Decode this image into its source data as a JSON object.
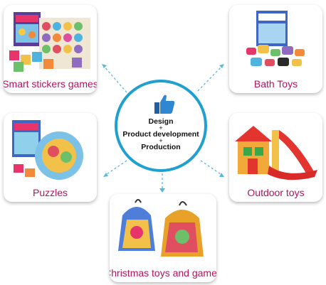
{
  "center": {
    "icon": "thumbs-up-icon",
    "lines": [
      "Design",
      "+",
      "Product development",
      "+",
      "Production"
    ]
  },
  "cards": {
    "smart_stickers": {
      "label": "Smart stickers games"
    },
    "bath_toys": {
      "label": "Bath Toys"
    },
    "puzzles": {
      "label": "Puzzles"
    },
    "outdoor_toys": {
      "label": "Outdoor toys"
    },
    "christmas": {
      "label": "Christmas toys and games"
    }
  },
  "colors": {
    "label": "#b5135e",
    "ring": "#1fa0cf",
    "connector": "#5ab8d8"
  }
}
